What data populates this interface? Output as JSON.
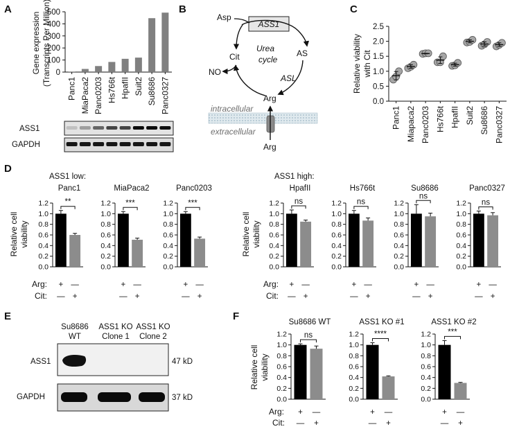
{
  "panel_labels": {
    "A": "A",
    "B": "B",
    "C": "C",
    "D": "D",
    "E": "E",
    "F": "F"
  },
  "chart_data": [
    {
      "id": "A",
      "type": "bar",
      "ylabel_line1": "Gene expression",
      "ylabel_line2": "(Transcripts Per Million)",
      "ylim": [
        0,
        500
      ],
      "yticks": [
        0,
        100,
        200,
        300,
        400,
        500
      ],
      "categories": [
        "Panc1",
        "MiaPaca2",
        "Panc0203",
        "Hs766t",
        "HpafII",
        "Suit2",
        "Su8686",
        "Panc0327"
      ],
      "values": [
        4,
        26,
        50,
        84,
        110,
        120,
        447,
        493
      ],
      "color": "#808080"
    },
    {
      "id": "C",
      "type": "scatter",
      "ylabel_line1": "Relative viability",
      "ylabel_line2": "with Cit",
      "ylim": [
        0.0,
        2.5
      ],
      "yticks": [
        "0.0",
        "0.5",
        "1.0",
        "1.5",
        "2.0",
        "2.5"
      ],
      "categories": [
        "Panc1",
        "Miapaca2",
        "Panc0203",
        "Hs766t",
        "HpafII",
        "Suit2",
        "Su8686",
        "Panc0327"
      ],
      "points": [
        [
          0.72,
          0.82,
          1.0
        ],
        [
          1.1,
          1.15,
          1.22
        ],
        [
          1.58,
          1.6,
          1.6
        ],
        [
          1.3,
          1.3,
          1.5
        ],
        [
          1.18,
          1.2,
          1.28
        ],
        [
          1.96,
          1.98,
          2.05
        ],
        [
          1.85,
          1.9,
          1.98
        ],
        [
          1.83,
          1.88,
          1.95
        ]
      ],
      "means": [
        0.85,
        1.16,
        1.59,
        1.37,
        1.22,
        2.0,
        1.91,
        1.89
      ],
      "sd": [
        0.14,
        0.06,
        0.01,
        0.11,
        0.05,
        0.05,
        0.07,
        0.06
      ]
    },
    {
      "id": "D",
      "type": "bar",
      "group_low_title": "ASS1 low:",
      "group_high_title": "ASS1 high:",
      "ylabel_line1": "Relative cell",
      "ylabel_line2": "viability",
      "ylim": [
        0.0,
        1.2
      ],
      "yticks": [
        "0.0",
        "0.2",
        "0.4",
        "0.6",
        "0.8",
        "1.0",
        "1.2"
      ],
      "row_labels": {
        "arg": "Arg:",
        "cit": "Cit:"
      },
      "subplots": [
        {
          "title": "Panc1",
          "values": [
            1.0,
            0.6
          ],
          "errors": [
            0.06,
            0.03
          ],
          "sig": "**"
        },
        {
          "title": "MiaPaca2",
          "values": [
            1.0,
            0.51
          ],
          "errors": [
            0.04,
            0.03
          ],
          "sig": "***"
        },
        {
          "title": "Panc0203",
          "values": [
            1.0,
            0.53
          ],
          "errors": [
            0.04,
            0.03
          ],
          "sig": "***"
        },
        {
          "title": "HpafII",
          "values": [
            1.0,
            0.85
          ],
          "errors": [
            0.07,
            0.03
          ],
          "sig": "ns"
        },
        {
          "title": "Hs766t",
          "values": [
            1.0,
            0.87
          ],
          "errors": [
            0.06,
            0.05
          ],
          "sig": "ns"
        },
        {
          "title": "Su8686",
          "values": [
            1.0,
            0.95
          ],
          "errors": [
            0.17,
            0.06
          ],
          "sig": "ns"
        },
        {
          "title": "Panc0327",
          "values": [
            1.0,
            0.97
          ],
          "errors": [
            0.05,
            0.05
          ],
          "sig": "ns"
        }
      ]
    },
    {
      "id": "F",
      "type": "bar",
      "ylabel_line1": "Relative cell",
      "ylabel_line2": "viability",
      "ylim": [
        0.0,
        1.2
      ],
      "yticks": [
        "0.0",
        "0.2",
        "0.4",
        "0.6",
        "0.8",
        "1.0",
        "1.2"
      ],
      "row_labels": {
        "arg": "Arg:",
        "cit": "Cit:"
      },
      "subplots": [
        {
          "title": "Su8686 WT",
          "values": [
            1.0,
            0.93
          ],
          "errors": [
            0.02,
            0.05
          ],
          "sig": "ns"
        },
        {
          "title": "ASS1 KO #1",
          "values": [
            1.0,
            0.42
          ],
          "errors": [
            0.04,
            0.01
          ],
          "sig": "****"
        },
        {
          "title": "ASS1 KO #2",
          "values": [
            1.0,
            0.3
          ],
          "errors": [
            0.08,
            0.01
          ],
          "sig": "***"
        }
      ]
    }
  ],
  "panel_a_blot": {
    "rows": [
      "ASS1",
      "GAPDH"
    ]
  },
  "panel_b": {
    "enzyme": "ASS1",
    "asp": "Asp",
    "as": "AS",
    "cit": "Cit",
    "arg": "Arg",
    "no": "NO",
    "asl": "ASL",
    "cycle_line1": "Urea",
    "cycle_line2": "cycle",
    "intracellular": "intracellular",
    "extracellular": "extracellular",
    "arg_out": "Arg"
  },
  "panel_e": {
    "lanes": [
      {
        "line1": "Su8686",
        "line2": "WT"
      },
      {
        "line1": "ASS1 KO",
        "line2": "Clone 1"
      },
      {
        "line1": "ASS1 KO",
        "line2": "Clone 2"
      }
    ],
    "rows": [
      {
        "label": "ASS1",
        "size": "47 kD"
      },
      {
        "label": "GAPDH",
        "size": "37 kD"
      }
    ]
  },
  "colors": {
    "black_bar": "#000000",
    "gray_bar": "#8c8c8c",
    "dot": "#a6a6a6"
  }
}
